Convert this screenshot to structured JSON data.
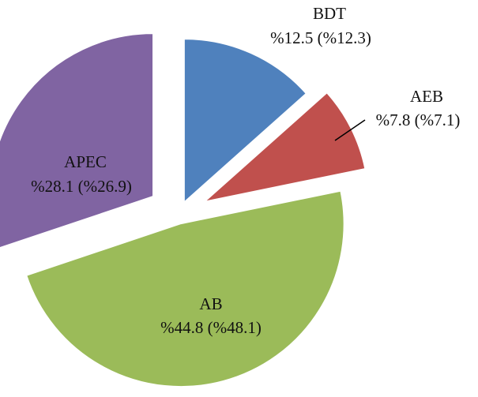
{
  "chart_data": {
    "type": "pie",
    "start_angle_deg": 0,
    "direction": "clockwise",
    "exploded": true,
    "slices": [
      {
        "name": "BDT",
        "value": 12.5,
        "label_line1": "BDT",
        "label_line2": "%12.5 (%12.3)",
        "color": "#4F81BD"
      },
      {
        "name": "AEB",
        "value": 7.8,
        "label_line1": "AEB",
        "label_line2": "%7.8 (%7.1)",
        "color": "#C0504D"
      },
      {
        "name": "AB",
        "value": 44.8,
        "label_line1": "AB",
        "label_line2": "%44.8 (%48.1)",
        "color": "#9BBB59"
      },
      {
        "name": "APEC",
        "value": 28.1,
        "label_line1": "APEC",
        "label_line2": "%28.1 (%26.9)",
        "color": "#8064A2"
      }
    ]
  }
}
